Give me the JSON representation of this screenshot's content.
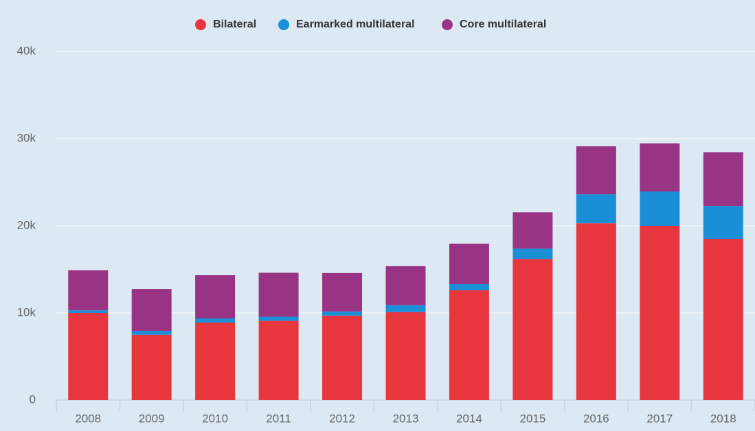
{
  "chart_data": {
    "type": "stacked_bar",
    "categories": [
      "2008",
      "2009",
      "2010",
      "2011",
      "2012",
      "2013",
      "2014",
      "2015",
      "2016",
      "2017",
      "2018"
    ],
    "series": [
      {
        "name": "Bilateral",
        "color": "#e8363f",
        "values": [
          10000,
          7500,
          8900,
          9100,
          9700,
          10100,
          12600,
          16200,
          20300,
          20000,
          18500
        ]
      },
      {
        "name": "Earmarked multilateral",
        "color": "#1a8fd8",
        "values": [
          300,
          450,
          470,
          470,
          470,
          790,
          710,
          1180,
          3310,
          3940,
          3780
        ]
      },
      {
        "name": "Core multilateral",
        "color": "#993485",
        "values": [
          4600,
          4800,
          4960,
          5040,
          4410,
          4480,
          4640,
          4170,
          5510,
          5510,
          6150
        ]
      }
    ],
    "ylim": [
      0,
      40000
    ],
    "yticks": [
      0,
      {
        "value": 10000,
        "label": "10k"
      },
      {
        "value": 20000,
        "label": "20k"
      },
      {
        "value": 30000,
        "label": "30k"
      },
      {
        "value": 40000,
        "label": "40k"
      }
    ],
    "grid": true
  }
}
